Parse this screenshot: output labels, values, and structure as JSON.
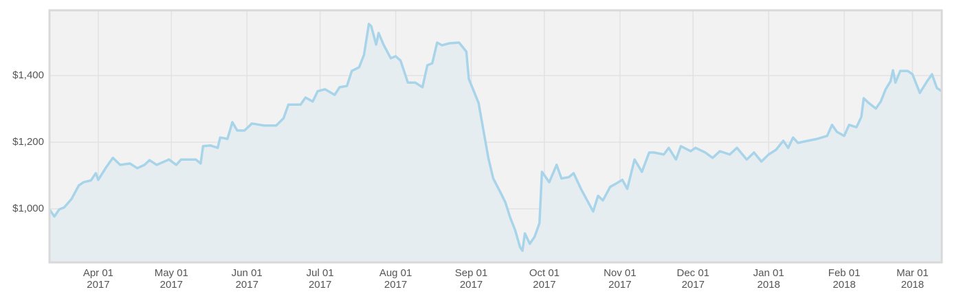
{
  "chart_data": {
    "type": "area",
    "x": [
      "2017-03-12",
      "2017-03-14",
      "2017-03-16",
      "2017-03-18",
      "2017-03-21",
      "2017-03-24",
      "2017-03-26",
      "2017-03-29",
      "2017-03-31",
      "2017-04-01",
      "2017-04-04",
      "2017-04-07",
      "2017-04-10",
      "2017-04-14",
      "2017-04-17",
      "2017-04-20",
      "2017-04-22",
      "2017-04-25",
      "2017-04-30",
      "2017-05-03",
      "2017-05-05",
      "2017-05-08",
      "2017-05-11",
      "2017-05-13",
      "2017-05-14",
      "2017-05-17",
      "2017-05-20",
      "2017-05-21",
      "2017-05-24",
      "2017-05-26",
      "2017-05-28",
      "2017-05-31",
      "2017-06-03",
      "2017-06-08",
      "2017-06-13",
      "2017-06-16",
      "2017-06-18",
      "2017-06-23",
      "2017-06-25",
      "2017-06-28",
      "2017-06-30",
      "2017-07-03",
      "2017-07-07",
      "2017-07-09",
      "2017-07-12",
      "2017-07-14",
      "2017-07-17",
      "2017-07-19",
      "2017-07-21",
      "2017-07-22",
      "2017-07-24",
      "2017-07-25",
      "2017-07-27",
      "2017-07-30",
      "2017-08-01",
      "2017-08-03",
      "2017-08-06",
      "2017-08-09",
      "2017-08-12",
      "2017-08-14",
      "2017-08-16",
      "2017-08-18",
      "2017-08-20",
      "2017-08-23",
      "2017-08-27",
      "2017-08-30",
      "2017-08-31",
      "2017-09-04",
      "2017-09-06",
      "2017-09-08",
      "2017-09-10",
      "2017-09-13",
      "2017-09-15",
      "2017-09-17",
      "2017-09-19",
      "2017-09-21",
      "2017-09-22",
      "2017-09-23",
      "2017-09-25",
      "2017-09-27",
      "2017-09-29",
      "2017-09-30",
      "2017-10-03",
      "2017-10-06",
      "2017-10-08",
      "2017-10-11",
      "2017-10-13",
      "2017-10-16",
      "2017-10-19",
      "2017-10-21",
      "2017-10-23",
      "2017-10-25",
      "2017-10-28",
      "2017-10-30",
      "2017-11-02",
      "2017-11-04",
      "2017-11-07",
      "2017-11-10",
      "2017-11-13",
      "2017-11-15",
      "2017-11-19",
      "2017-11-21",
      "2017-11-24",
      "2017-11-26",
      "2017-11-30",
      "2017-12-02",
      "2017-12-06",
      "2017-12-09",
      "2017-12-12",
      "2017-12-16",
      "2017-12-19",
      "2017-12-23",
      "2017-12-26",
      "2017-12-29",
      "2018-01-01",
      "2018-01-04",
      "2018-01-07",
      "2018-01-09",
      "2018-01-11",
      "2018-01-13",
      "2018-01-17",
      "2018-01-21",
      "2018-01-25",
      "2018-01-27",
      "2018-01-29",
      "2018-02-01",
      "2018-02-03",
      "2018-02-06",
      "2018-02-08",
      "2018-02-09",
      "2018-02-11",
      "2018-02-14",
      "2018-02-16",
      "2018-02-18",
      "2018-02-20",
      "2018-02-21",
      "2018-02-22",
      "2018-02-24",
      "2018-02-27",
      "2018-03-01",
      "2018-03-04",
      "2018-03-07",
      "2018-03-09",
      "2018-03-11",
      "2018-03-13"
    ],
    "values": [
      998,
      977,
      998,
      1004,
      1029,
      1070,
      1080,
      1085,
      1107,
      1087,
      1122,
      1153,
      1132,
      1136,
      1122,
      1132,
      1146,
      1132,
      1148,
      1132,
      1148,
      1148,
      1148,
      1136,
      1188,
      1190,
      1183,
      1214,
      1210,
      1260,
      1235,
      1235,
      1256,
      1250,
      1250,
      1272,
      1313,
      1313,
      1334,
      1322,
      1353,
      1359,
      1342,
      1365,
      1369,
      1414,
      1425,
      1462,
      1555,
      1548,
      1493,
      1528,
      1493,
      1452,
      1458,
      1445,
      1379,
      1379,
      1365,
      1431,
      1437,
      1499,
      1491,
      1497,
      1499,
      1472,
      1390,
      1318,
      1235,
      1153,
      1091,
      1049,
      1019,
      973,
      936,
      885,
      874,
      926,
      895,
      916,
      957,
      1111,
      1080,
      1132,
      1091,
      1095,
      1107,
      1060,
      1019,
      992,
      1039,
      1025,
      1066,
      1074,
      1087,
      1060,
      1148,
      1111,
      1169,
      1169,
      1163,
      1183,
      1148,
      1188,
      1173,
      1183,
      1169,
      1153,
      1173,
      1163,
      1183,
      1148,
      1169,
      1142,
      1163,
      1177,
      1204,
      1183,
      1214,
      1198,
      1204,
      1210,
      1219,
      1252,
      1231,
      1219,
      1252,
      1245,
      1276,
      1332,
      1318,
      1301,
      1322,
      1359,
      1383,
      1416,
      1379,
      1414,
      1414,
      1404,
      1348,
      1383,
      1404,
      1363,
      1353
    ],
    "color": "#a8d4ea",
    "fill": "#e6edf1",
    "xlim": [
      "2017-03-12",
      "2018-03-13"
    ],
    "xticks": [
      {
        "value": "2017-04-01",
        "label": "Apr 01 2017"
      },
      {
        "value": "2017-05-01",
        "label": "May 01 2017"
      },
      {
        "value": "2017-06-01",
        "label": "Jun 01 2017"
      },
      {
        "value": "2017-07-01",
        "label": "Jul 01 2017"
      },
      {
        "value": "2017-08-01",
        "label": "Aug 01 2017"
      },
      {
        "value": "2017-09-01",
        "label": "Sep 01 2017"
      },
      {
        "value": "2017-10-01",
        "label": "Oct 01 2017"
      },
      {
        "value": "2017-11-01",
        "label": "Nov 01 2017"
      },
      {
        "value": "2017-12-01",
        "label": "Dec 01 2017"
      },
      {
        "value": "2018-01-01",
        "label": "Jan 01 2018"
      },
      {
        "value": "2018-02-01",
        "label": "Feb 01 2018"
      },
      {
        "value": "2018-03-01",
        "label": "Mar 01 2018"
      }
    ],
    "ylim": [
      839,
      1596
    ],
    "yticks": [
      {
        "value": 1000,
        "label": "$1,000"
      },
      {
        "value": 1200,
        "label": "$1,200"
      },
      {
        "value": 1400,
        "label": "$1,400"
      }
    ],
    "grid": true
  }
}
